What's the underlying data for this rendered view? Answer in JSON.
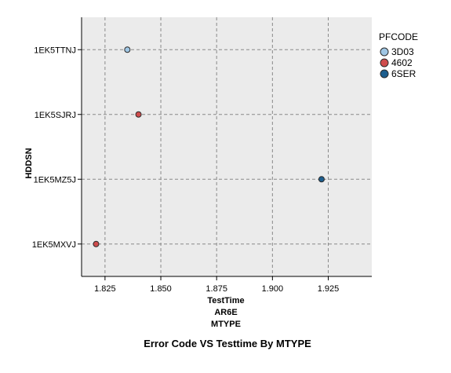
{
  "chart_data": {
    "type": "scatter",
    "title": "Error Code VS Testtime By MTYPE",
    "xlabel": "TestTime",
    "xlabel_lines": [
      "AR6E",
      "MTYPE"
    ],
    "ylabel": "HDDSN",
    "xlim": [
      1.8145,
      1.9445
    ],
    "xticks": [
      1.825,
      1.85,
      1.875,
      1.9,
      1.925
    ],
    "xtick_labels": [
      "1.825",
      "1.850",
      "1.875",
      "1.900",
      "1.925"
    ],
    "categories": [
      "1EK5TTNJ",
      "1EK5SJRJ",
      "1EK5MZ5J",
      "1EK5MXVJ"
    ],
    "grid": true,
    "legend": {
      "title": "PFCODE",
      "placement": "right",
      "entries": [
        {
          "label": "3D03",
          "color": "#9fc6e4"
        },
        {
          "label": "4602",
          "color": "#cf4c4c"
        },
        {
          "label": "6SER",
          "color": "#1d5e8e"
        }
      ]
    },
    "series": [
      {
        "name": "3D03",
        "color": "#9fc6e4",
        "points": [
          {
            "x": 1.835,
            "y": "1EK5TTNJ"
          }
        ]
      },
      {
        "name": "4602",
        "color": "#cf4c4c",
        "points": [
          {
            "x": 1.84,
            "y": "1EK5SJRJ"
          },
          {
            "x": 1.821,
            "y": "1EK5MXVJ"
          }
        ]
      },
      {
        "name": "6SER",
        "color": "#1d5e8e",
        "points": [
          {
            "x": 1.922,
            "y": "1EK5MZ5J"
          }
        ]
      }
    ],
    "colors": {
      "plot_background": "#ebebeb",
      "grid": "#8a8a8a",
      "marker_edge": "#2b2b2b"
    }
  }
}
